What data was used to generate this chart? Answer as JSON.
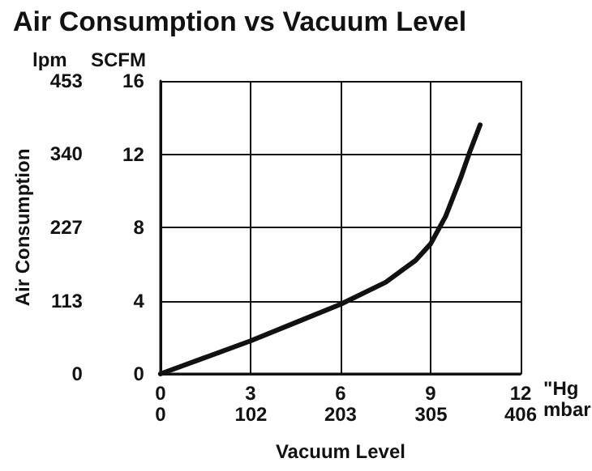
{
  "chart_data": {
    "type": "line",
    "title": "Air Consumption vs Vacuum Level",
    "xlabel": "Vacuum Level",
    "ylabel": "Air Consumption",
    "annotations": [
      "lpm",
      "SCFM",
      "\"Hg",
      "mbar"
    ],
    "series": [
      {
        "color": "#111111",
        "axis": "y2",
        "x": [
          0,
          1.5,
          3,
          4.5,
          6,
          7.5,
          8.5,
          9,
          9.5,
          10,
          10.3,
          10.65
        ],
        "values": [
          0,
          0.9,
          1.8,
          2.8,
          3.8,
          5.0,
          6.2,
          7.1,
          8.6,
          10.7,
          12.1,
          13.6
        ]
      }
    ],
    "xlim": [
      0,
      12
    ],
    "xticks": [
      0,
      3,
      6,
      9,
      12
    ],
    "x2lim": [
      0,
      406
    ],
    "x2ticks": [
      0,
      102,
      203,
      305,
      406
    ],
    "ylim": [
      0,
      453
    ],
    "yticks": [
      0,
      113,
      227,
      340,
      453
    ],
    "y2lim": [
      0,
      16
    ],
    "y2ticks": [
      0,
      4,
      8,
      12,
      16
    ],
    "grid": true,
    "marker": "none",
    "line_style": "solid"
  }
}
